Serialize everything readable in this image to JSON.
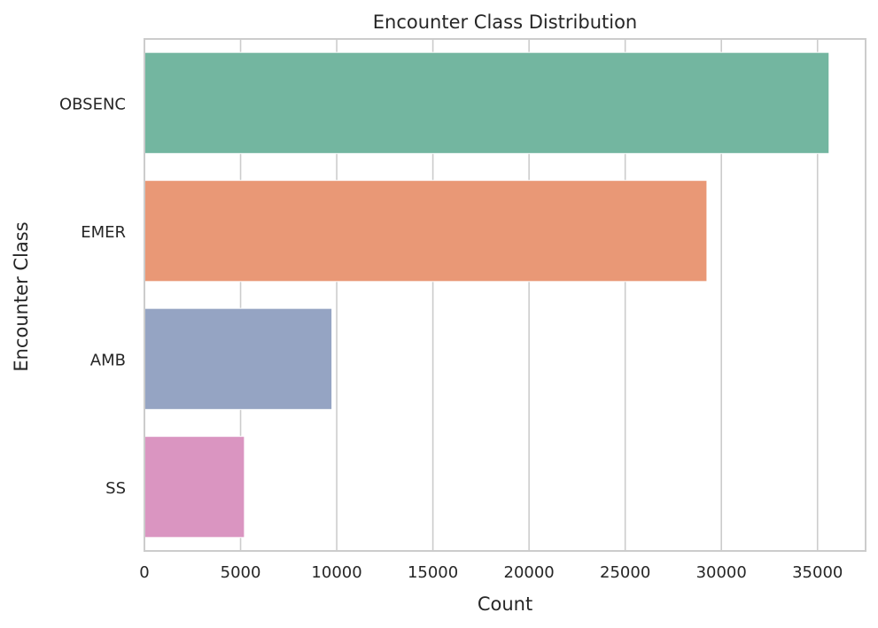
{
  "chart_data": {
    "type": "bar",
    "orientation": "horizontal",
    "title": "Encounter Class Distribution",
    "xlabel": "Count",
    "ylabel": "Encounter Class",
    "categories": [
      "OBSENC",
      "EMER",
      "AMB",
      "SS"
    ],
    "values": [
      35600,
      29250,
      9750,
      5200
    ],
    "colors": [
      "#73b6a0",
      "#e99876",
      "#95a4c3",
      "#da95c1"
    ],
    "xlim": [
      0,
      37500
    ],
    "xticks": [
      0,
      5000,
      10000,
      15000,
      20000,
      25000,
      30000,
      35000
    ],
    "xtick_labels": [
      "0",
      "5000",
      "10000",
      "15000",
      "20000",
      "25000",
      "30000",
      "35000"
    ],
    "grid": "vertical",
    "legend": "none"
  }
}
